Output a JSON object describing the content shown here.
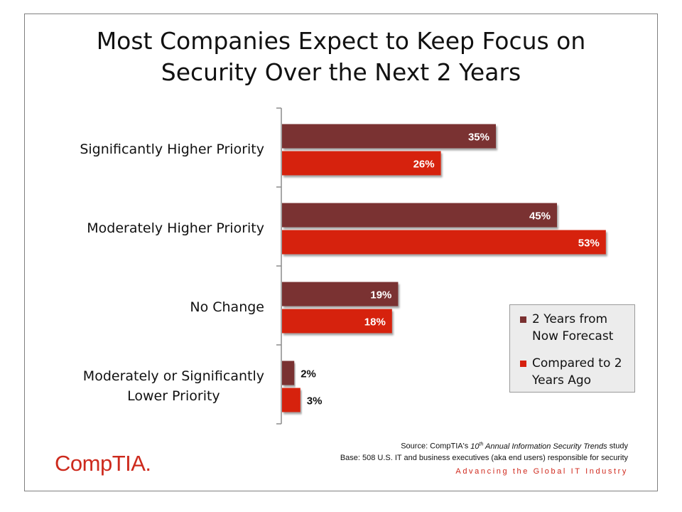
{
  "title": {
    "line1": "Most Companies Expect to Keep Focus on",
    "line2": "Security Over the Next 2 Years"
  },
  "chart_data": {
    "type": "bar",
    "orientation": "horizontal",
    "categories": [
      "Significantly Higher Priority",
      "Moderately Higher Priority",
      "No Change",
      "Moderately or Significantly Lower Priority"
    ],
    "category_label_lines": [
      [
        "Significantly Higher Priority"
      ],
      [
        "Moderately Higher Priority"
      ],
      [
        "No Change"
      ],
      [
        "Moderately or Significantly",
        "Lower Priority"
      ]
    ],
    "series": [
      {
        "name": "2 Years from Now Forecast",
        "color": "#7a3030",
        "values": [
          35,
          45,
          19,
          2
        ]
      },
      {
        "name": "Compared to 2 Years Ago",
        "color": "#d6200e",
        "values": [
          26,
          53,
          18,
          3
        ]
      }
    ],
    "value_suffix": "%",
    "legend_position": "right",
    "grid": false
  },
  "legend": {
    "items": [
      {
        "line1": "2 Years from",
        "line2": "Now Forecast",
        "color": "#7a3030"
      },
      {
        "line1": "Compared to 2",
        "line2": "Years Ago",
        "color": "#d6200e"
      }
    ]
  },
  "footer": {
    "source_prefix": "Source: CompTIA's ",
    "source_ordinal": "10",
    "source_ordinal_suffix": "th",
    "source_title": " Annual Information Security Trends",
    "source_suffix": " study",
    "base": "Base: 508 U.S. IT and business executives (aka end users) responsible for security",
    "tagline": "Advancing the Global IT Industry"
  },
  "logo": {
    "text": "CompTIA."
  }
}
